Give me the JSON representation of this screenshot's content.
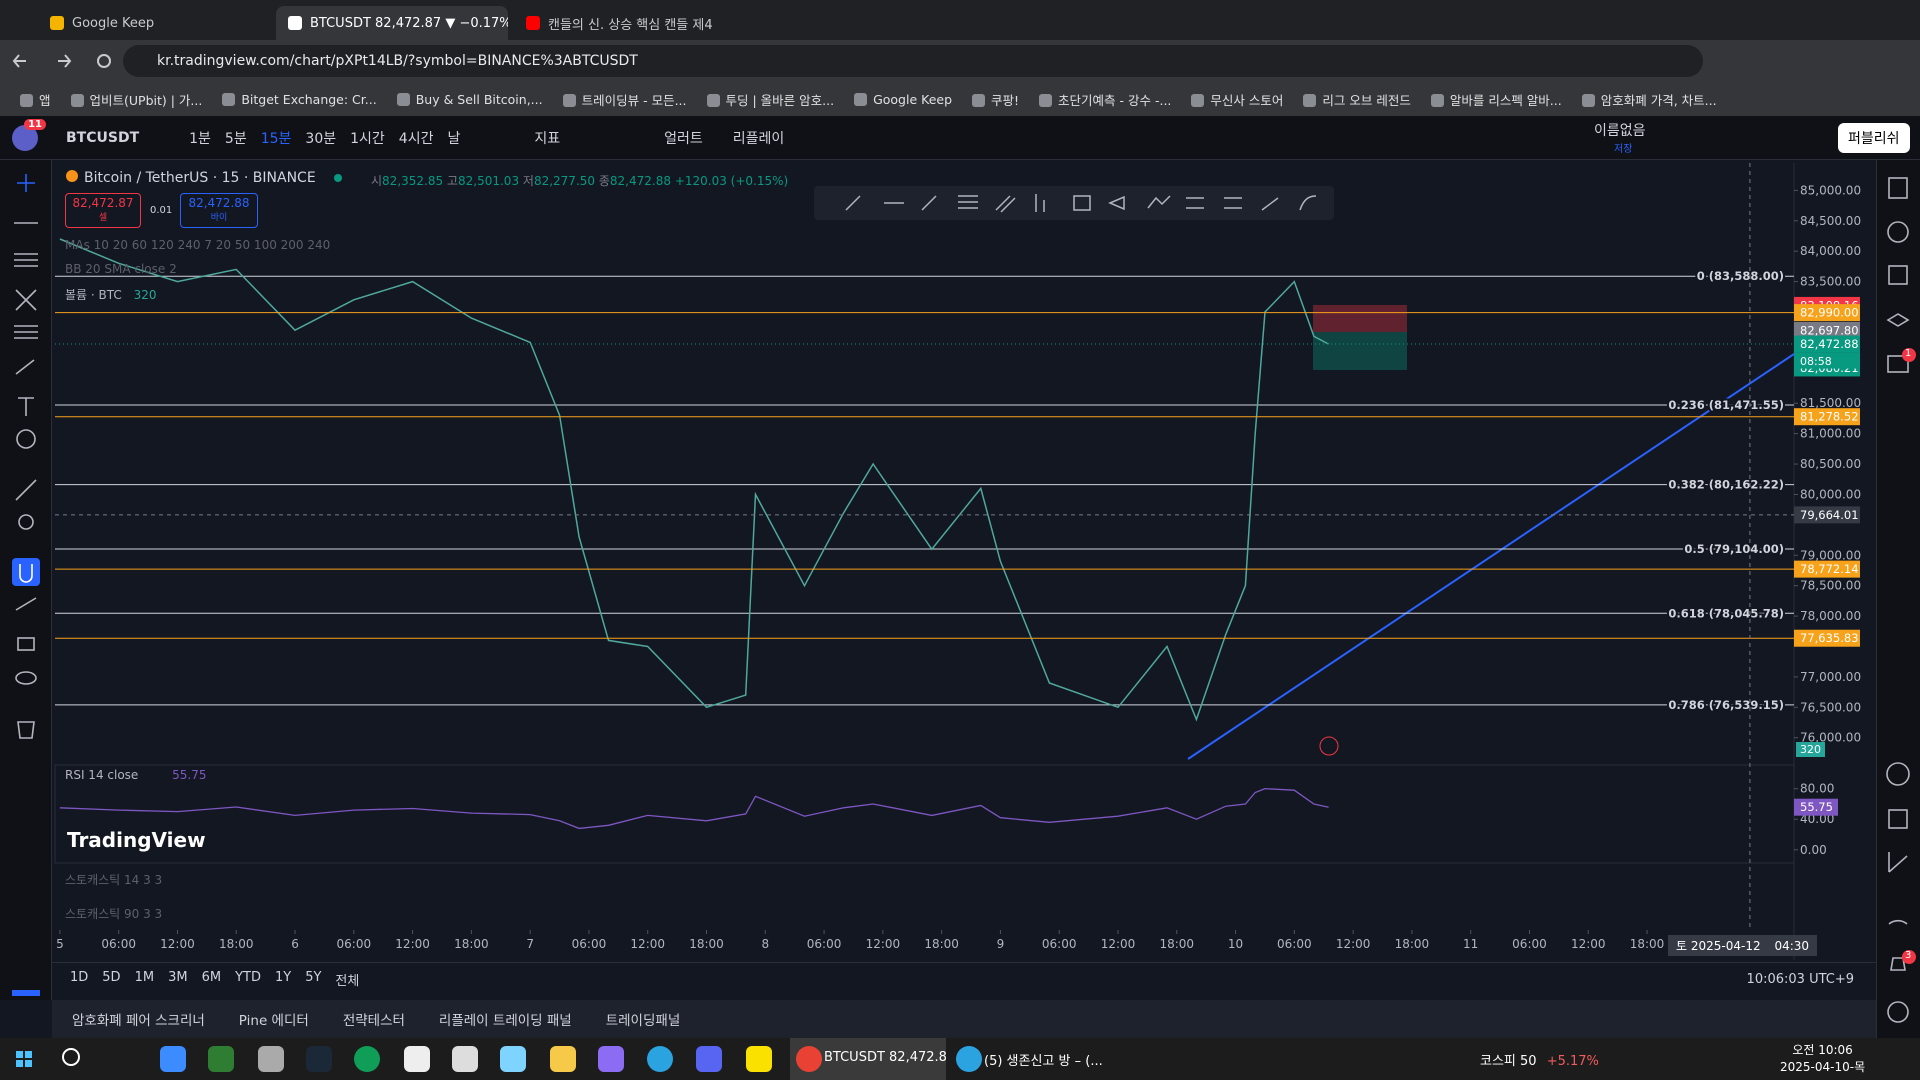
{
  "browser": {
    "tabs": [
      "Google Keep",
      "BTCUSDT 82,472.87 ▼ −0.17%",
      "캔들의 신. 상승 핵심 캔들 제4"
    ],
    "url": "kr.tradingview.com/chart/pXPt14LB/?symbol=BINANCE%3ABTCUSDT",
    "bookmarks": [
      "앱",
      "업비트(UPbit) | 가...",
      "Bitget Exchange: Cr...",
      "Buy & Sell Bitcoin,...",
      "트레이딩뷰 - 모든...",
      "투딩 | 올바른 암호...",
      "Google Keep",
      "쿠팡!",
      "초단기예측 - 강수 -...",
      "무신사 스토어",
      "리그 오브 레전드",
      "알바를 리스펙 알바...",
      "암호화폐 가격, 차트..."
    ]
  },
  "toolbar": {
    "notifications": "11",
    "symbol": "BTCUSDT",
    "intervals": [
      "1분",
      "5분",
      "15분",
      "30분",
      "1시간",
      "4시간",
      "날"
    ],
    "indicators": "지표",
    "alerts": "얼러트",
    "replay": "리플레이",
    "layout_name": "이름없음",
    "saved": "저장",
    "publish": "퍼블리쉬"
  },
  "chart": {
    "header": {
      "symbol": "Bitcoin / TetherUS · 15 · BINANCE",
      "open_label": "시",
      "open": "82,352.85",
      "high_label": "고",
      "high": "82,501.03",
      "low_label": "저",
      "low": "82,277.50",
      "close_label": "종",
      "close": "82,472.88",
      "change": "+120.03 (+0.15%)"
    },
    "sell": {
      "price": "82,472.87",
      "label": "셀"
    },
    "spread": "0.01",
    "buy": {
      "price": "82,472.88",
      "label": "바이"
    },
    "indicators": [
      "MAs 10 20 60 120 240 7 20 50 100 200 240",
      "BB 20 SMA close 2"
    ],
    "volume": {
      "name": "볼륨 · BTC",
      "value": "320"
    },
    "ylim": [
      75650,
      85450
    ],
    "yticks": [
      {
        "value": 85000,
        "label": "85,000.00"
      },
      {
        "value": 84500,
        "label": "84,500.00"
      },
      {
        "value": 84000,
        "label": "84,000.00"
      },
      {
        "value": 83500,
        "label": "83,500.00"
      },
      {
        "value": 81500,
        "label": "81,500.00"
      },
      {
        "value": 81000,
        "label": "81,000.00"
      },
      {
        "value": 80500,
        "label": "80,500.00"
      },
      {
        "value": 80000,
        "label": "80,000.00"
      },
      {
        "value": 79000,
        "label": "79,000.00"
      },
      {
        "value": 78500,
        "label": "78,500.00"
      },
      {
        "value": 78000,
        "label": "78,000.00"
      },
      {
        "value": 77000,
        "label": "77,000.00"
      },
      {
        "value": 76500,
        "label": "76,500.00"
      },
      {
        "value": 76000,
        "label": "76,000.00"
      }
    ],
    "price_labels": [
      {
        "value": 83108.16,
        "label": "83,108.16",
        "color": "#f23645"
      },
      {
        "value": 82990,
        "label": "82,990.00",
        "color": "#f7a21b",
        "line": true
      },
      {
        "value": 82697.8,
        "label": "82,697.80",
        "color": "#787b86"
      },
      {
        "value": 82472.88,
        "label": "82,472.88",
        "color": "#089981"
      },
      {
        "value": 82080.21,
        "label": "82,080.21",
        "color": "#089981"
      },
      {
        "value": 81278.52,
        "label": "81,278.52",
        "color": "#f7a21b",
        "line": true
      },
      {
        "value": 78772.14,
        "label": "78,772.14",
        "color": "#f7a21b",
        "line": true
      },
      {
        "value": 77635.83,
        "label": "77,635.83",
        "color": "#f7a21b",
        "line": true
      }
    ],
    "countdown": "08:58",
    "fib_levels": [
      {
        "value": 83588,
        "label": "0 (83,588.00)"
      },
      {
        "value": 81471.55,
        "label": "0.236 (81,471.55)"
      },
      {
        "value": 80162.22,
        "label": "0.382 (80,162.22)"
      },
      {
        "value": 79104,
        "label": "0.5 (79,104.00)"
      },
      {
        "value": 78045.78,
        "label": "0.618 (78,045.78)"
      },
      {
        "value": 76539.15,
        "label": "0.786 (76,539.15)"
      }
    ],
    "xlim": [
      "2025-04-04 23:30",
      "2025-04-12 09:00"
    ],
    "xticks": [
      {
        "value": "2025-04-05 00:00",
        "label": "5"
      },
      {
        "value": "2025-04-05 06:00",
        "label": "06:00"
      },
      {
        "value": "2025-04-05 12:00",
        "label": "12:00"
      },
      {
        "value": "2025-04-05 18:00",
        "label": "18:00"
      },
      {
        "value": "2025-04-06 00:00",
        "label": "6"
      },
      {
        "value": "2025-04-06 06:00",
        "label": "06:00"
      },
      {
        "value": "2025-04-06 12:00",
        "label": "12:00"
      },
      {
        "value": "2025-04-06 18:00",
        "label": "18:00"
      },
      {
        "value": "2025-04-07 00:00",
        "label": "7"
      },
      {
        "value": "2025-04-07 06:00",
        "label": "06:00"
      },
      {
        "value": "2025-04-07 12:00",
        "label": "12:00"
      },
      {
        "value": "2025-04-07 18:00",
        "label": "18:00"
      },
      {
        "value": "2025-04-08 00:00",
        "label": "8"
      },
      {
        "value": "2025-04-08 06:00",
        "label": "06:00"
      },
      {
        "value": "2025-04-08 12:00",
        "label": "12:00"
      },
      {
        "value": "2025-04-08 18:00",
        "label": "18:00"
      },
      {
        "value": "2025-04-09 00:00",
        "label": "9"
      },
      {
        "value": "2025-04-09 06:00",
        "label": "06:00"
      },
      {
        "value": "2025-04-09 12:00",
        "label": "12:00"
      },
      {
        "value": "2025-04-09 18:00",
        "label": "18:00"
      },
      {
        "value": "2025-04-10 00:00",
        "label": "10"
      },
      {
        "value": "2025-04-10 06:00",
        "label": "06:00"
      },
      {
        "value": "2025-04-10 12:00",
        "label": "12:00"
      },
      {
        "value": "2025-04-10 18:00",
        "label": "18:00"
      },
      {
        "value": "2025-04-11 00:00",
        "label": "11"
      },
      {
        "value": "2025-04-11 06:00",
        "label": "06:00"
      },
      {
        "value": "2025-04-11 12:00",
        "label": "12:00"
      },
      {
        "value": "2025-04-11 18:00",
        "label": "18:00"
      }
    ],
    "price_series": {
      "color": "#4fa89c",
      "x": [
        "2025-04-05 00:00",
        "2025-04-05 06:00",
        "2025-04-05 12:00",
        "2025-04-05 18:00",
        "2025-04-06 00:00",
        "2025-04-06 06:00",
        "2025-04-06 12:00",
        "2025-04-06 18:00",
        "2025-04-07 00:00",
        "2025-04-07 03:00",
        "2025-04-07 05:00",
        "2025-04-07 08:00",
        "2025-04-07 12:00",
        "2025-04-07 18:00",
        "2025-04-07 22:00",
        "2025-04-07 23:00",
        "2025-04-08 04:00",
        "2025-04-08 08:00",
        "2025-04-08 11:00",
        "2025-04-08 17:00",
        "2025-04-08 22:00",
        "2025-04-09 00:00",
        "2025-04-09 05:00",
        "2025-04-09 12:00",
        "2025-04-09 17:00",
        "2025-04-09 20:00",
        "2025-04-09 23:00",
        "2025-04-10 01:00",
        "2025-04-10 02:00",
        "2025-04-10 03:00",
        "2025-04-10 06:00",
        "2025-04-10 08:00",
        "2025-04-10 09:30"
      ],
      "values": [
        84200,
        83800,
        83500,
        83700,
        82700,
        83200,
        83500,
        82900,
        82500,
        81300,
        79300,
        77600,
        77500,
        76500,
        76700,
        80000,
        78500,
        79700,
        80500,
        79100,
        80100,
        78900,
        76900,
        76500,
        77500,
        76300,
        77700,
        78500,
        81000,
        83000,
        83500,
        82600,
        82472.88
      ]
    },
    "crosshair": {
      "price": {
        "value": 79664.01,
        "label": "79,664.01"
      },
      "weekday": "토",
      "date": "2025-04-12",
      "time": "04:30"
    },
    "rsi": {
      "title": "RSI 14 close",
      "color": "#7e57c2",
      "last": {
        "value": 55.75,
        "label": "55.75"
      },
      "ylim": [
        -16,
        111
      ],
      "yticks": [
        {
          "value": 80,
          "label": "80.00"
        },
        {
          "value": 40,
          "label": "40.00"
        },
        {
          "value": 0,
          "label": "0.00"
        }
      ],
      "values": [
        55,
        52,
        50,
        56,
        45,
        52,
        54,
        48,
        46,
        38,
        28,
        32,
        45,
        38,
        47,
        70,
        44,
        55,
        60,
        45,
        58,
        42,
        36,
        44,
        55,
        40,
        57,
        60,
        75,
        80,
        78,
        60,
        55.75
      ]
    },
    "logo": "TradingView",
    "stochastics": [
      "스토캐스틱 14 3 3",
      "스토캐스틱 90 3 3"
    ]
  },
  "bottom": {
    "ranges": [
      "1D",
      "5D",
      "1M",
      "3M",
      "6M",
      "YTD",
      "1Y",
      "5Y",
      "전체"
    ],
    "clock": "10:06:03 UTC+9",
    "panels": [
      "암호화폐 페어 스크리너",
      "Pine 에디터",
      "전략테스터",
      "리플레이 트레이딩 패널",
      "트레이딩패널"
    ]
  },
  "sidebar": {
    "badges": [
      "1",
      "3"
    ]
  },
  "taskbar": {
    "apps": [
      "BTCUSDT 82,472.8...",
      "(5) 생존신고 방 – (..."
    ],
    "stock": "코스피 50",
    "stock_change": "+5.17%",
    "time": "오전 10:06",
    "date": "2025-04-10-목"
  }
}
